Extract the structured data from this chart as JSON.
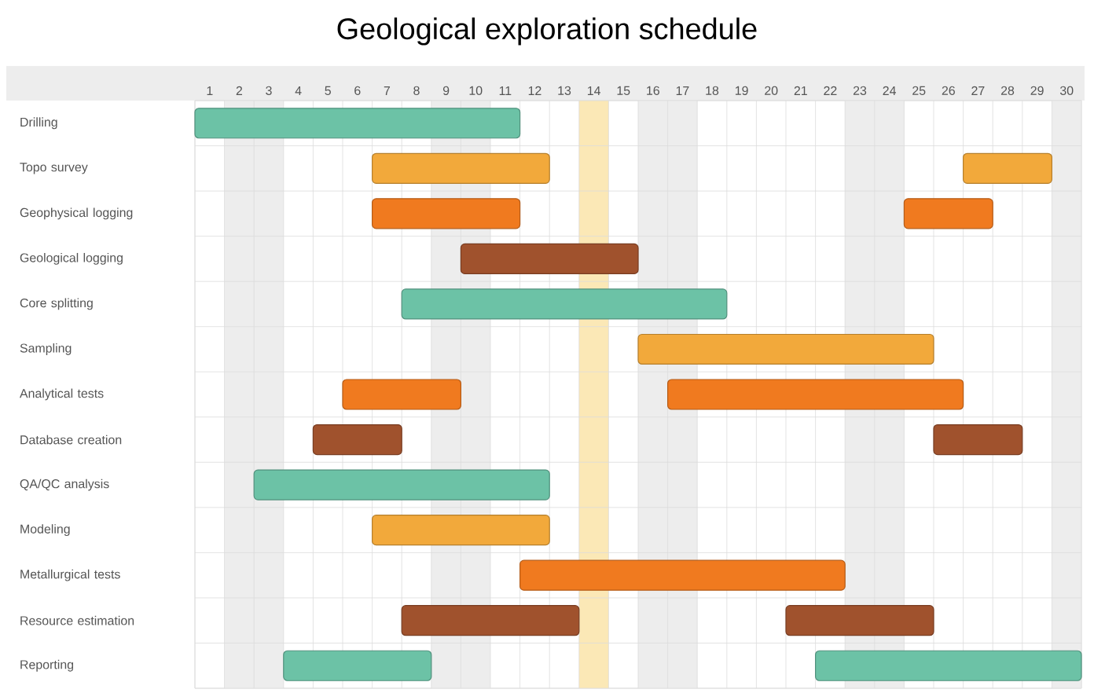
{
  "chart_data": {
    "type": "bar",
    "orientation": "horizontal",
    "title": "Geological exploration schedule",
    "categories": [
      "Drilling",
      "Topo survey",
      "Geophysical logging",
      "Geological logging",
      "Core splitting",
      "Sampling",
      "Analytical tests",
      "Database creation",
      "QA/QC analysis",
      "Modeling",
      "Metallurgical tests",
      "Resource estimation",
      "Reporting"
    ],
    "series": [
      {
        "base": [
          0.5,
          6.5,
          6.5,
          9.5,
          7.5,
          15.5,
          5.5,
          4.5,
          2.5,
          6.5,
          11.5,
          7.5,
          3.5
        ],
        "values": [
          11,
          6,
          5,
          6,
          11,
          10,
          4,
          3,
          10,
          6,
          11,
          6,
          5
        ],
        "colors": [
          "#6cc2a6",
          "#f2a93b",
          "#f07a1f",
          "#a0522d",
          "#6cc2a6",
          "#f2a93b",
          "#f07a1f",
          "#a0522d",
          "#6cc2a6",
          "#f2a93b",
          "#f07a1f",
          "#a0522d",
          "#6cc2a6"
        ]
      },
      {
        "base": [
          null,
          26.5,
          24.5,
          null,
          null,
          null,
          16.5,
          25.5,
          null,
          null,
          null,
          20.5,
          21.5
        ],
        "values": [
          null,
          3,
          3,
          null,
          null,
          null,
          10,
          3,
          null,
          null,
          null,
          5,
          9
        ],
        "colors": [
          null,
          "#f2a93b",
          "#f07a1f",
          null,
          null,
          null,
          "#f07a1f",
          "#a0522d",
          null,
          null,
          null,
          "#a0522d",
          "#6cc2a6"
        ]
      }
    ],
    "xlim": [
      0.5,
      30.5
    ],
    "xticks": [
      1,
      2,
      3,
      4,
      5,
      6,
      7,
      8,
      9,
      10,
      11,
      12,
      13,
      14,
      15,
      16,
      17,
      18,
      19,
      20,
      21,
      22,
      23,
      24,
      25,
      26,
      27,
      28,
      29,
      30
    ],
    "grid": true,
    "bands": [
      {
        "axis": "x",
        "from": 1.5,
        "to": 3.5,
        "color": "#ededed"
      },
      {
        "axis": "x",
        "from": 8.5,
        "to": 10.5,
        "color": "#ededed"
      },
      {
        "axis": "x",
        "from": 15.5,
        "to": 17.5,
        "color": "#ededed"
      },
      {
        "axis": "x",
        "from": 22.5,
        "to": 24.5,
        "color": "#ededed"
      },
      {
        "axis": "x",
        "from": 29.5,
        "to": 30.5,
        "color": "#ededed"
      },
      {
        "axis": "x",
        "from": 13.5,
        "to": 14.5,
        "color": "#fbe8b6"
      }
    ]
  }
}
